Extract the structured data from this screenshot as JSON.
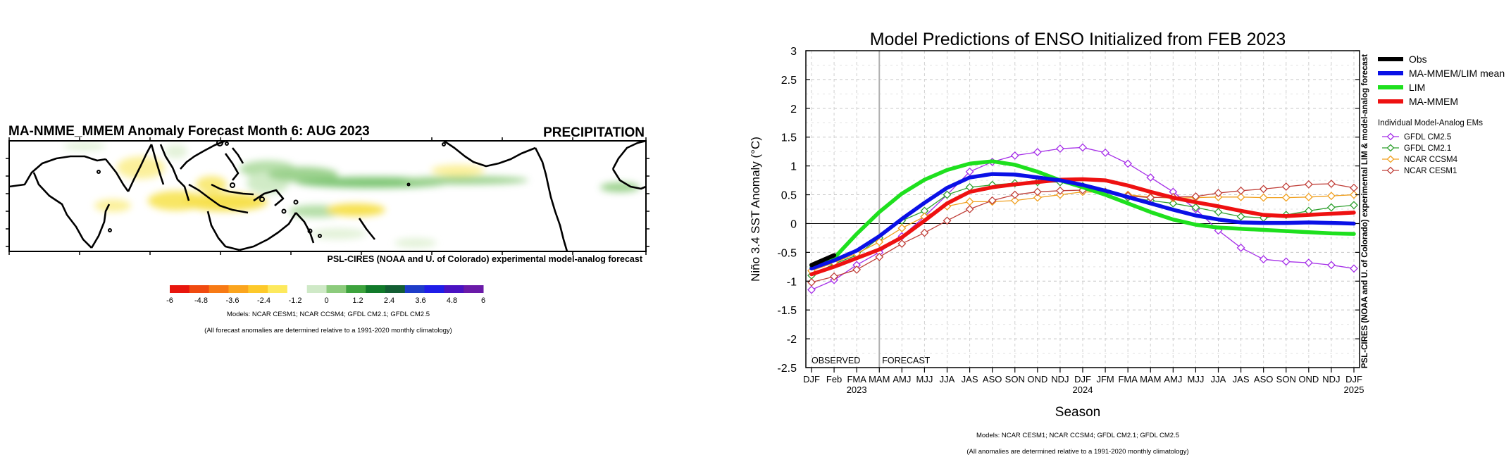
{
  "map_panel": {
    "title": "MA-NMME_MMEM Anomaly Forecast Month 6: AUG 2023",
    "variable_label": "PRECIPITATION",
    "credit": "PSL-CIRES (NOAA and U. of Colorado) experimental model-analog forecast",
    "colorbar": {
      "tick_labels": [
        "-6",
        "-4.8",
        "-3.6",
        "-2.4",
        "-1.2",
        "0",
        "1.2",
        "2.4",
        "3.6",
        "4.8",
        "6"
      ],
      "colors": [
        "#e8160d",
        "#f04a10",
        "#f77a15",
        "#fba51e",
        "#fdc92a",
        "#fde95d",
        "#ffffff",
        "#cfe9c7",
        "#8ccb7c",
        "#3da33d",
        "#117a2a",
        "#135e33",
        "#1e3cc8",
        "#1f1de8",
        "#4a12c2",
        "#6a1aa8"
      ]
    },
    "models_note": "Models: NCAR CESM1; NCAR CCSM4; GFDL CM2.1; GFDL CM2.5",
    "climatology_note": "(All forecast anomalies are determined relative to a 1991-2020 monthly climatology)"
  },
  "chart_panel": {
    "models_note": "Models: NCAR CESM1; NCAR CCSM4; GFDL CM2.1; GFDL CM2.5",
    "climatology_note": "(All anomalies are determined relative to a 1991-2020 monthly climatology)",
    "side_credit": "PSL-CIRES (NOAA and U. of Colorado) experimental LIM & model-analog forecast"
  },
  "chart_data": {
    "type": "line",
    "title": "Model Predictions of ENSO Initialized from FEB 2023",
    "xlabel": "Season",
    "ylabel": "Niño 3.4 SST Anomaly (°C)",
    "ylim": [
      -2.5,
      3
    ],
    "yticks": [
      "-2.5",
      "-2",
      "-1.5",
      "-1",
      "-0.5",
      "0",
      "0.5",
      "1",
      "1.5",
      "2",
      "2.5",
      "3"
    ],
    "categories": [
      "DJF",
      "Feb",
      "FMA",
      "MAM",
      "AMJ",
      "MJJ",
      "JJA",
      "JAS",
      "ASO",
      "SON",
      "OND",
      "NDJ",
      "DJF",
      "JFM",
      "FMA",
      "MAM",
      "AMJ",
      "MJJ",
      "JJA",
      "JAS",
      "ASO",
      "SON",
      "OND",
      "NDJ",
      "DJF"
    ],
    "year_labels": [
      {
        "index": 2,
        "label": "2023"
      },
      {
        "index": 12,
        "label": "2024"
      },
      {
        "index": 24,
        "label": "2025"
      }
    ],
    "forecast_start_index": 3,
    "observed_label": "OBSERVED",
    "forecast_label": "FORECAST",
    "grid": true,
    "legend_position": "right",
    "legend_subheading": "Individual Model-Analog EMs",
    "series": [
      {
        "name": "Obs",
        "color": "#000000",
        "style": "thick",
        "x": [
          0,
          1
        ],
        "values": [
          -0.72,
          -0.55
        ]
      },
      {
        "name": "MA-MMEM/LIM mean",
        "color": "#0a10e6",
        "style": "thick",
        "x": [
          0,
          1,
          2,
          3,
          4,
          5,
          6,
          7,
          8,
          9,
          10,
          11,
          12,
          13,
          14,
          15,
          16,
          17,
          18,
          19,
          20,
          21,
          22,
          23,
          24
        ],
        "values": [
          -0.78,
          -0.64,
          -0.47,
          -0.22,
          0.08,
          0.36,
          0.62,
          0.8,
          0.86,
          0.85,
          0.8,
          0.75,
          0.67,
          0.57,
          0.46,
          0.35,
          0.24,
          0.14,
          0.07,
          0.02,
          0.01,
          0.01,
          0.02,
          0.01,
          0.0
        ]
      },
      {
        "name": "LIM",
        "color": "#1ee01e",
        "style": "thick",
        "x": [
          0,
          1,
          2,
          3,
          4,
          5,
          6,
          7,
          8,
          9,
          10,
          11,
          12,
          13,
          14,
          15,
          16,
          17,
          18,
          19,
          20,
          21,
          22,
          23,
          24
        ],
        "values": [
          -0.76,
          -0.6,
          -0.18,
          0.2,
          0.52,
          0.76,
          0.93,
          1.04,
          1.08,
          1.02,
          0.9,
          0.75,
          0.63,
          0.5,
          0.35,
          0.2,
          0.07,
          -0.02,
          -0.07,
          -0.09,
          -0.11,
          -0.13,
          -0.15,
          -0.17,
          -0.18
        ]
      },
      {
        "name": "MA-MMEM",
        "color": "#ee1111",
        "style": "thick",
        "x": [
          0,
          1,
          2,
          3,
          4,
          5,
          6,
          7,
          8,
          9,
          10,
          11,
          12,
          13,
          14,
          15,
          16,
          17,
          18,
          19,
          20,
          21,
          22,
          23,
          24
        ],
        "values": [
          -0.88,
          -0.75,
          -0.6,
          -0.45,
          -0.24,
          0.05,
          0.35,
          0.55,
          0.63,
          0.68,
          0.72,
          0.76,
          0.77,
          0.75,
          0.66,
          0.55,
          0.45,
          0.37,
          0.3,
          0.22,
          0.15,
          0.13,
          0.15,
          0.17,
          0.19
        ]
      },
      {
        "name": "GFDL CM2.5",
        "color": "#a52ee8",
        "style": "markers",
        "x": [
          0,
          1,
          2,
          3,
          4,
          5,
          6,
          7,
          8,
          9,
          10,
          11,
          12,
          13,
          14,
          15,
          16,
          17,
          18,
          19,
          20,
          21,
          22,
          23,
          24
        ],
        "values": [
          -1.15,
          -0.98,
          -0.72,
          -0.5,
          -0.22,
          0.12,
          0.5,
          0.9,
          1.07,
          1.18,
          1.24,
          1.3,
          1.32,
          1.23,
          1.04,
          0.8,
          0.55,
          0.25,
          -0.12,
          -0.42,
          -0.62,
          -0.66,
          -0.68,
          -0.72,
          -0.78
        ]
      },
      {
        "name": "GFDL CM2.1",
        "color": "#2ea02e",
        "style": "markers",
        "x": [
          0,
          1,
          2,
          3,
          4,
          5,
          6,
          7,
          8,
          9,
          10,
          11,
          12,
          13,
          14,
          15,
          16,
          17,
          18,
          19,
          20,
          21,
          22,
          23,
          24
        ],
        "values": [
          -0.9,
          -0.7,
          -0.55,
          -0.25,
          0.05,
          0.22,
          0.5,
          0.63,
          0.67,
          0.7,
          0.72,
          0.72,
          0.65,
          0.55,
          0.45,
          0.4,
          0.35,
          0.28,
          0.2,
          0.12,
          0.1,
          0.15,
          0.22,
          0.28,
          0.32
        ]
      },
      {
        "name": "NCAR CCSM4",
        "color": "#f0a020",
        "style": "markers",
        "x": [
          0,
          1,
          2,
          3,
          4,
          5,
          6,
          7,
          8,
          9,
          10,
          11,
          12,
          13,
          14,
          15,
          16,
          17,
          18,
          19,
          20,
          21,
          22,
          23,
          24
        ],
        "values": [
          -0.82,
          -0.68,
          -0.52,
          -0.32,
          -0.08,
          0.12,
          0.3,
          0.38,
          0.38,
          0.4,
          0.45,
          0.5,
          0.55,
          0.54,
          0.5,
          0.46,
          0.44,
          0.45,
          0.46,
          0.46,
          0.45,
          0.45,
          0.46,
          0.48,
          0.5
        ]
      },
      {
        "name": "NCAR CESM1",
        "color": "#c0403a",
        "style": "markers",
        "x": [
          0,
          1,
          2,
          3,
          4,
          5,
          6,
          7,
          8,
          9,
          10,
          11,
          12,
          13,
          14,
          15,
          16,
          17,
          18,
          19,
          20,
          21,
          22,
          23,
          24
        ],
        "values": [
          -1.02,
          -0.92,
          -0.8,
          -0.58,
          -0.35,
          -0.16,
          0.05,
          0.25,
          0.4,
          0.5,
          0.55,
          0.57,
          0.58,
          0.55,
          0.48,
          0.45,
          0.46,
          0.47,
          0.53,
          0.57,
          0.6,
          0.64,
          0.68,
          0.69,
          0.62
        ]
      }
    ]
  }
}
